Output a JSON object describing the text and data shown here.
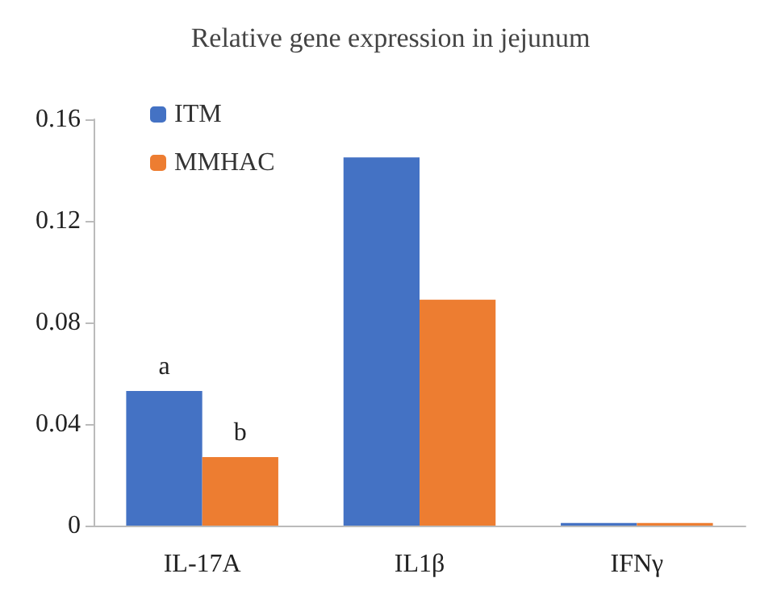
{
  "chart_data": {
    "type": "bar",
    "title": "Relative gene expression in jejunum",
    "categories": [
      "IL-17A",
      "IL1β",
      "IFNγ"
    ],
    "series": [
      {
        "name": "ITM",
        "color": "#4472c4",
        "values": [
          0.053,
          0.145,
          0.001
        ]
      },
      {
        "name": "MMHAC",
        "color": "#ed7d31",
        "values": [
          0.027,
          0.089,
          0.001
        ]
      }
    ],
    "ylim": [
      0,
      0.16
    ],
    "yticks": [
      0,
      0.04,
      0.08,
      0.12,
      0.16
    ],
    "grid": false,
    "legend": "top left",
    "annotations": [
      {
        "text": "a",
        "x": "IL-17A",
        "y": 0.053
      },
      {
        "text": "b",
        "x": "IL-17A",
        "y": 0.027
      }
    ]
  }
}
